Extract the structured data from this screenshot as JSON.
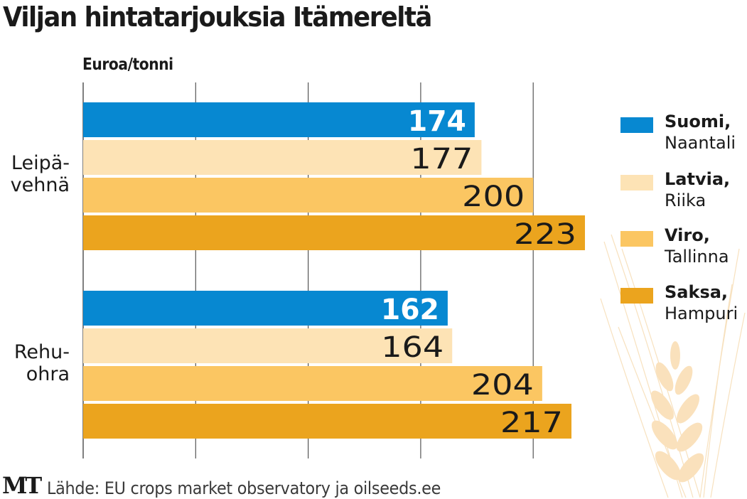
{
  "title": "Viljan hintatarjouksia Itämereltä",
  "unit_label": "Euroa/tonni",
  "source": "Lähde: EU crops market observatory ja oilseeds.ee",
  "logo": "MT",
  "colors": {
    "suomi": "#0788d1",
    "latvia": "#fde3b5",
    "viro": "#fbc662",
    "saksa": "#eba41e",
    "grid": "#555555"
  },
  "chart_data": {
    "type": "bar",
    "orientation": "horizontal",
    "title": "Viljan hintatarjouksia Itämereltä",
    "xlabel": "Euroa/tonni",
    "ylabel": "",
    "xlim": [
      0,
      223
    ],
    "grid_values": [
      0,
      50,
      100,
      150,
      200
    ],
    "categories": [
      {
        "label_line1": "Leipä-",
        "label_line2": "vehnä"
      },
      {
        "label_line1": "Rehu-",
        "label_line2": "ohra"
      }
    ],
    "series": [
      {
        "key": "suomi",
        "name": "Suomi,",
        "city": "Naantali",
        "values": [
          174,
          162
        ]
      },
      {
        "key": "latvia",
        "name": "Latvia,",
        "city": "Riika",
        "values": [
          177,
          164
        ]
      },
      {
        "key": "viro",
        "name": "Viro,",
        "city": "Tallinna",
        "values": [
          200,
          204
        ]
      },
      {
        "key": "saksa",
        "name": "Saksa,",
        "city": "Hampuri",
        "values": [
          223,
          217
        ]
      }
    ],
    "legend_position": "right"
  }
}
